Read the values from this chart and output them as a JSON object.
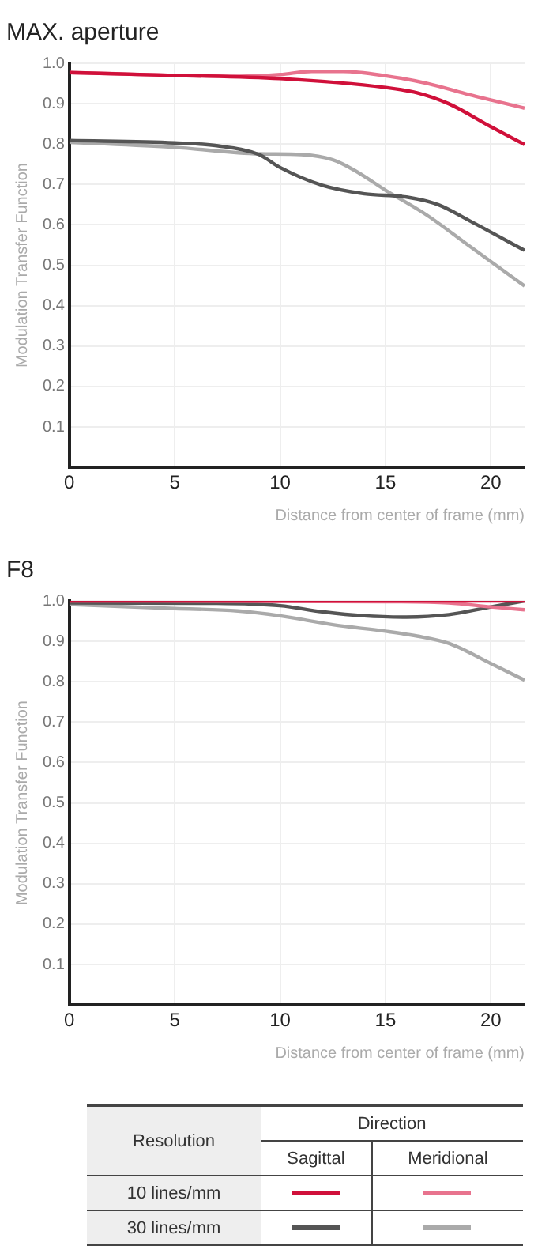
{
  "chart_data": [
    {
      "type": "line",
      "title": "MAX. aperture",
      "xlabel": "Distance from center of frame (mm)",
      "ylabel": "Modulation Transfer Function",
      "xlim": [
        0,
        21.6
      ],
      "xticks": [
        0,
        5,
        10,
        15,
        20
      ],
      "ylim": [
        0,
        1
      ],
      "yticks": [
        0.1,
        0.2,
        0.3,
        0.4,
        0.5,
        0.6,
        0.7,
        0.8,
        0.9,
        {
          "value": 1,
          "label": "1.0"
        }
      ],
      "grid": true,
      "legend": false,
      "series": [
        {
          "color": "#d0103a",
          "x": [
            0,
            5,
            10,
            15,
            16.5,
            18,
            20,
            21.6
          ],
          "values": [
            0.977,
            0.97,
            0.962,
            0.94,
            0.927,
            0.9,
            0.843,
            0.799
          ]
        },
        {
          "color": "#e8738e",
          "x": [
            0,
            8,
            10,
            11.5,
            13,
            15,
            17,
            19,
            21.6
          ],
          "values": [
            0.977,
            0.968,
            0.972,
            0.98,
            0.98,
            0.969,
            0.95,
            0.922,
            0.889
          ]
        },
        {
          "color": "#555555",
          "x": [
            0,
            5,
            7,
            9,
            10,
            12,
            14,
            16,
            17.5,
            19,
            21.6
          ],
          "values": [
            0.809,
            0.803,
            0.796,
            0.774,
            0.742,
            0.698,
            0.677,
            0.669,
            0.65,
            0.61,
            0.537
          ]
        },
        {
          "color": "#aaaaaa",
          "x": [
            0,
            5,
            9,
            11,
            12.5,
            13.5,
            15,
            17,
            19,
            21.6
          ],
          "values": [
            0.805,
            0.792,
            0.776,
            0.774,
            0.761,
            0.736,
            0.686,
            0.623,
            0.547,
            0.449
          ]
        }
      ]
    },
    {
      "type": "line",
      "title": "F8",
      "xlabel": "Distance from center of frame (mm)",
      "ylabel": "Modulation Transfer Function",
      "xlim": [
        0,
        21.6
      ],
      "xticks": [
        0,
        5,
        10,
        15,
        20
      ],
      "ylim": [
        0,
        1
      ],
      "yticks": [
        0.1,
        0.2,
        0.3,
        0.4,
        0.5,
        0.6,
        0.7,
        0.8,
        0.9,
        {
          "value": 1,
          "label": "1.0"
        }
      ],
      "grid": true,
      "legend": false,
      "series": [
        {
          "color": "#d0103a",
          "x": [
            0,
            10,
            21.6
          ],
          "values": [
            1,
            1,
            1
          ]
        },
        {
          "color": "#e8738e",
          "x": [
            0,
            15,
            18,
            20,
            21.6
          ],
          "values": [
            1,
            0.998,
            0.995,
            0.985,
            0.978
          ]
        },
        {
          "color": "#555555",
          "x": [
            0,
            7,
            10,
            12,
            14,
            16,
            18,
            20,
            21.6
          ],
          "values": [
            0.995,
            0.994,
            0.988,
            0.973,
            0.963,
            0.96,
            0.966,
            0.985,
            1
          ]
        },
        {
          "color": "#aaaaaa",
          "x": [
            0,
            5,
            8,
            10,
            12.5,
            15,
            16.5,
            18,
            20,
            21.6
          ],
          "values": [
            0.991,
            0.981,
            0.975,
            0.963,
            0.941,
            0.925,
            0.913,
            0.895,
            0.845,
            0.804
          ]
        }
      ]
    },
    {
      "type": "other",
      "annotations": [
        "Resolution",
        "Direction",
        "Sagittal",
        "Meridional",
        "10 lines/mm",
        "30 lines/mm"
      ]
    }
  ]
}
